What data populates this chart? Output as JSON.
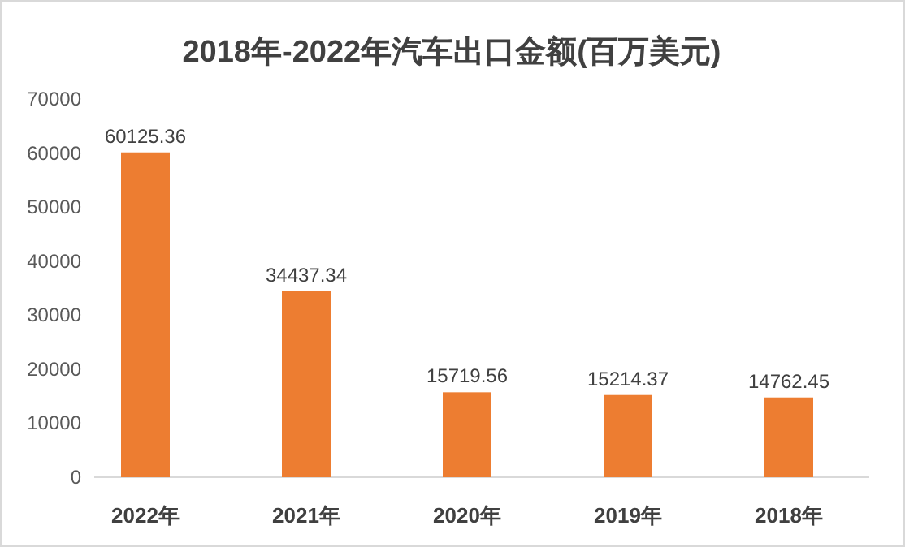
{
  "chart_data": {
    "type": "bar",
    "title": "2018年-2022年汽车出口金额(百万美元)",
    "categories": [
      "2022年",
      "2021年",
      "2020年",
      "2019年",
      "2018年"
    ],
    "values": [
      60125.36,
      34437.34,
      15719.56,
      15214.37,
      14762.45
    ],
    "color": "#ed7d31",
    "ylim": [
      0,
      70000
    ],
    "yticks": [
      0,
      10000,
      20000,
      30000,
      40000,
      50000,
      60000,
      70000
    ],
    "data_labels": true
  }
}
